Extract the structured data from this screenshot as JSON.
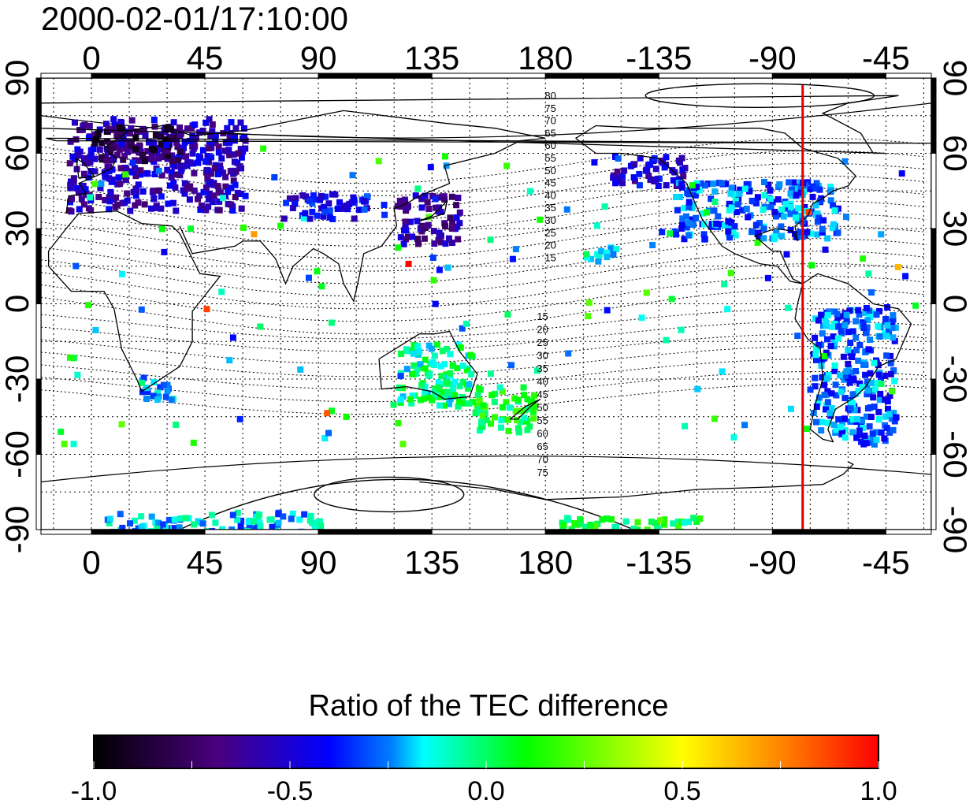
{
  "title": "2000-02-01/17:10:00",
  "map": {
    "top_axis_labels": [
      "0",
      "45",
      "90",
      "135",
      "180",
      "-135",
      "-90",
      "-45"
    ],
    "bottom_axis_labels": [
      "0",
      "45",
      "90",
      "135",
      "180",
      "-135",
      "-90",
      "-45"
    ],
    "left_axis_labels": [
      "90",
      "60",
      "30",
      "0",
      "-30",
      "-60",
      "-90"
    ],
    "right_axis_labels": [
      "90",
      "60",
      "30",
      "0",
      "-30",
      "-60",
      "-90"
    ],
    "longitude_ticks": [
      0,
      45,
      90,
      135,
      180,
      225,
      270,
      315
    ],
    "latitude_ticks": [
      90,
      60,
      30,
      0,
      -30,
      -60,
      -90
    ],
    "longitude_range": [
      -20,
      333
    ],
    "latitude_range": [
      -90,
      90
    ],
    "grid": true,
    "terminator_longitude": 282,
    "terminator_color": "#dd0000",
    "contour_labels_north": [
      "80",
      "75",
      "70",
      "65",
      "60",
      "55",
      "50",
      "45",
      "40",
      "35",
      "30",
      "25",
      "20",
      "15"
    ],
    "contour_labels_south": [
      "15",
      "20",
      "25",
      "30",
      "35",
      "40",
      "45",
      "50",
      "55",
      "60",
      "65",
      "70",
      "75"
    ]
  },
  "colorbar": {
    "title": "Ratio of the TEC difference",
    "ticks": [
      "-1.0",
      "-0.5",
      "0.0",
      "0.5",
      "1.0"
    ],
    "range": [
      -1.0,
      1.0
    ],
    "colormap": [
      "#000000",
      "#4a0080",
      "#0000ff",
      "#00ffff",
      "#00ff00",
      "#ffff00",
      "#ff8000",
      "#ff0000"
    ]
  },
  "chart_data": {
    "type": "heatmap",
    "title": "2000-02-01/17:10:00",
    "colorbar_label": "Ratio of the TEC difference",
    "value_range": [
      -1.0,
      1.0
    ],
    "regions": [
      {
        "lon": [
          -10,
          60
        ],
        "lat": [
          38,
          75
        ],
        "value": -0.55
      },
      {
        "lon": [
          0,
          35
        ],
        "lat": [
          58,
          72
        ],
        "value": -0.8
      },
      {
        "lon": [
          75,
          115
        ],
        "lat": [
          35,
          45
        ],
        "value": -0.45
      },
      {
        "lon": [
          120,
          145
        ],
        "lat": [
          25,
          45
        ],
        "value": -0.6
      },
      {
        "lon": [
          205,
          235
        ],
        "lat": [
          48,
          60
        ],
        "value": -0.5
      },
      {
        "lon": [
          230,
          295
        ],
        "lat": [
          27,
          50
        ],
        "value": -0.3
      },
      {
        "lon": [
          285,
          318
        ],
        "lat": [
          -55,
          0
        ],
        "value": -0.3
      },
      {
        "lon": [
          150,
          175
        ],
        "lat": [
          -50,
          -32
        ],
        "value": 0.05
      },
      {
        "lon": [
          120,
          150
        ],
        "lat": [
          -40,
          -15
        ],
        "value": -0.05
      },
      {
        "lon": [
          18,
          32
        ],
        "lat": [
          -38,
          -28
        ],
        "value": -0.2
      },
      {
        "lon": [
          5,
          90
        ],
        "lat": [
          -90,
          -82
        ],
        "value": -0.2
      },
      {
        "lon": [
          185,
          240
        ],
        "lat": [
          -90,
          -84
        ],
        "value": 0.05
      },
      {
        "lon": [
          195,
          210
        ],
        "lat": [
          18,
          24
        ],
        "value": -0.1
      }
    ]
  }
}
